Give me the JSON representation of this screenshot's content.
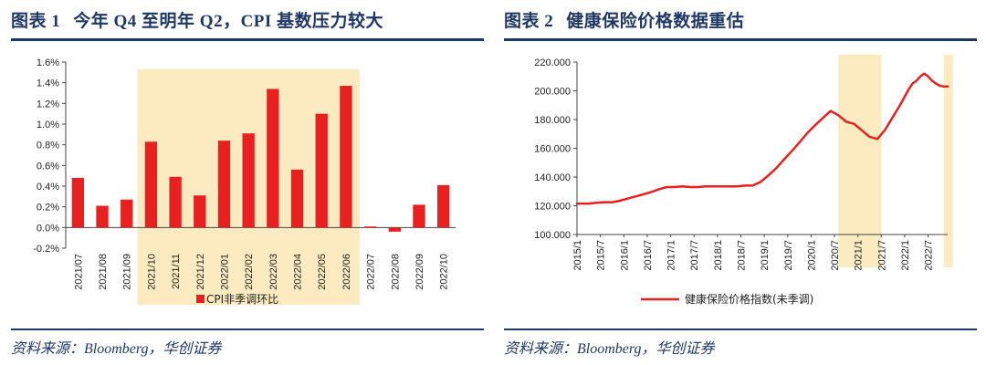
{
  "colors": {
    "accent": "#1F3864",
    "bar": "#E8201F",
    "line": "#E8201F",
    "highlight": "#FCEBC0"
  },
  "panels": [
    {
      "fig_label": "图表 1",
      "title": "今年 Q4 至明年 Q2，CPI 基数压力较大",
      "source": "资料来源：Bloomberg，华创证券"
    },
    {
      "fig_label": "图表 2",
      "title": "健康保险价格数据重估",
      "source": "资料来源：Bloomberg，华创证券"
    }
  ],
  "chart_data": [
    {
      "type": "bar",
      "categories": [
        "2021/07",
        "2021/08",
        "2021/09",
        "2021/10",
        "2021/11",
        "2021/12",
        "2022/01",
        "2022/02",
        "2022/03",
        "2022/04",
        "2022/05",
        "2022/06",
        "2022/07",
        "2022/08",
        "2022/09",
        "2022/10"
      ],
      "series": [
        {
          "name": "CPI非季调环比",
          "values": [
            0.48,
            0.21,
            0.27,
            0.83,
            0.49,
            0.31,
            0.84,
            0.91,
            1.34,
            0.56,
            1.1,
            1.37,
            0.01,
            -0.04,
            0.22,
            0.41
          ]
        }
      ],
      "ylim": [
        -0.2,
        1.6
      ],
      "y_ticks": [
        -0.2,
        0.0,
        0.2,
        0.4,
        0.6,
        0.8,
        1.0,
        1.2,
        1.4,
        1.6
      ],
      "y_tick_labels": [
        "-0.2%",
        "0.0%",
        "0.2%",
        "0.4%",
        "0.6%",
        "0.8%",
        "1.0%",
        "1.2%",
        "1.4%",
        "1.6%"
      ],
      "highlight_range": [
        "2021/10",
        "2022/06"
      ],
      "legend": "CPI非季调环比"
    },
    {
      "type": "line",
      "x_tick_labels": [
        "2015/1",
        "2015/7",
        "2016/1",
        "2016/7",
        "2017/1",
        "2017/7",
        "2018/1",
        "2018/7",
        "2019/1",
        "2019/7",
        "2020/1",
        "2020/7",
        "2021/1",
        "2021/7",
        "2022/1",
        "2022/7"
      ],
      "series": [
        {
          "name": "健康保险价格指数(未季调)",
          "x": [
            0,
            3,
            5,
            7,
            9,
            11,
            13,
            15,
            17,
            19,
            21,
            23,
            25,
            27,
            29,
            31,
            33,
            35,
            37,
            39,
            41,
            43,
            45,
            47,
            49,
            51,
            53,
            55,
            57,
            59,
            61,
            63,
            65,
            67,
            69,
            71,
            73,
            75,
            77,
            79,
            81,
            83,
            85,
            86,
            87,
            88,
            89,
            90,
            91,
            92,
            93,
            94,
            95
          ],
          "values": [
            121.5,
            121.5,
            122.0,
            122.5,
            122.5,
            123.5,
            125.0,
            126.5,
            128.0,
            129.5,
            131.5,
            133.0,
            133.0,
            133.5,
            133.0,
            133.0,
            133.5,
            133.5,
            133.5,
            133.5,
            133.5,
            134.0,
            134.0,
            136.5,
            141.0,
            146.0,
            152.0,
            158.0,
            164.0,
            170.5,
            176.0,
            181.0,
            186.0,
            183.0,
            178.5,
            177.0,
            172.5,
            168.0,
            166.5,
            173.0,
            182.0,
            191.0,
            201.0,
            205.0,
            207.0,
            210.0,
            212.0,
            210.0,
            207.0,
            205.0,
            203.5,
            203.0,
            203.0
          ]
        }
      ],
      "x_range": [
        0,
        95
      ],
      "ylim": [
        100,
        220
      ],
      "y_ticks": [
        100,
        120,
        140,
        160,
        180,
        200,
        220
      ],
      "y_tick_labels": [
        "100.000",
        "120.000",
        "140.000",
        "160.000",
        "180.000",
        "200.000",
        "220.000"
      ],
      "highlight_ranges": [
        [
          67,
          78
        ],
        [
          94,
          95
        ]
      ],
      "legend": "健康保险价格指数(未季调)"
    }
  ]
}
